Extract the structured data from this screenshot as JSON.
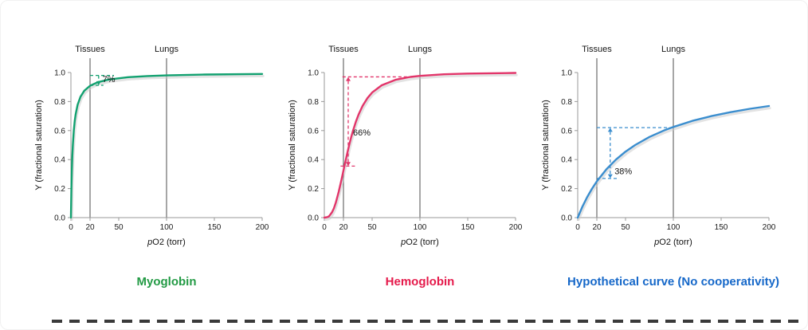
{
  "page": {
    "background": "#ffffff"
  },
  "chart_data": [
    {
      "type": "line",
      "title": "Myoglobin",
      "title_color": "#229a44",
      "color": "#12a170",
      "xlabel": "pO2 (torr)",
      "ylabel": "Y (fractional saturation)",
      "xlim": [
        0,
        200
      ],
      "ylim": [
        0,
        1
      ],
      "xticks": [
        0,
        20,
        50,
        100,
        150,
        200
      ],
      "yticks": [
        0,
        0.2,
        0.4,
        0.6,
        0.8,
        1
      ],
      "grid": false,
      "legend": "none",
      "reference_lines": [
        {
          "label": "Tissues",
          "x": 20
        },
        {
          "label": "Lungs",
          "x": 100
        }
      ],
      "annotation": {
        "label": "7%",
        "arrow_x": 29,
        "y_top": 0.98,
        "y_bottom": 0.912,
        "top_span": [
          20,
          45
        ],
        "bottom_span": [
          20,
          34
        ],
        "label_x": 33,
        "label_y": 0.935,
        "arrows": "down"
      },
      "points": [
        [
          0,
          0
        ],
        [
          0.5,
          0.2
        ],
        [
          1,
          0.333
        ],
        [
          1.5,
          0.429
        ],
        [
          2,
          0.5
        ],
        [
          3,
          0.6
        ],
        [
          4,
          0.667
        ],
        [
          5,
          0.714
        ],
        [
          7,
          0.778
        ],
        [
          10,
          0.833
        ],
        [
          14,
          0.875
        ],
        [
          20,
          0.909
        ],
        [
          28,
          0.933
        ],
        [
          40,
          0.952
        ],
        [
          60,
          0.968
        ],
        [
          80,
          0.976
        ],
        [
          100,
          0.98
        ],
        [
          140,
          0.986
        ],
        [
          200,
          0.99
        ]
      ]
    },
    {
      "type": "line",
      "title": "Hemoglobin",
      "title_color": "#e51a4b",
      "color": "#e2356a",
      "xlabel": "pO2 (torr)",
      "ylabel": "Y (fractional saturation)",
      "xlim": [
        0,
        200
      ],
      "ylim": [
        0,
        1
      ],
      "xticks": [
        0,
        20,
        50,
        100,
        150,
        200
      ],
      "yticks": [
        0,
        0.2,
        0.4,
        0.6,
        0.8,
        1
      ],
      "grid": false,
      "legend": "none",
      "reference_lines": [
        {
          "label": "Tissues",
          "x": 20
        },
        {
          "label": "Lungs",
          "x": 100
        }
      ],
      "annotation": {
        "label": "66%",
        "arrow_x": 25,
        "y_top": 0.97,
        "y_bottom": 0.355,
        "top_span": [
          19,
          90
        ],
        "bottom_span": [
          17,
          33
        ],
        "label_x": 30,
        "label_y": 0.565,
        "arrows": "both"
      },
      "points": [
        [
          0,
          0
        ],
        [
          3,
          0.003
        ],
        [
          5,
          0.01
        ],
        [
          8,
          0.036
        ],
        [
          10,
          0.064
        ],
        [
          12,
          0.103
        ],
        [
          15,
          0.177
        ],
        [
          18,
          0.263
        ],
        [
          20,
          0.324
        ],
        [
          22,
          0.385
        ],
        [
          24,
          0.444
        ],
        [
          26,
          0.5
        ],
        [
          28,
          0.552
        ],
        [
          30,
          0.599
        ],
        [
          33,
          0.661
        ],
        [
          36,
          0.713
        ],
        [
          40,
          0.77
        ],
        [
          45,
          0.823
        ],
        [
          50,
          0.862
        ],
        [
          60,
          0.912
        ],
        [
          75,
          0.951
        ],
        [
          90,
          0.97
        ],
        [
          100,
          0.977
        ],
        [
          125,
          0.988
        ],
        [
          150,
          0.993
        ],
        [
          200,
          0.997
        ]
      ]
    },
    {
      "type": "line",
      "title": "Hypothetical curve (No cooperativity)",
      "title_color": "#1668c9",
      "color": "#3a8dce",
      "xlabel": "pO2 (torr)",
      "ylabel": "Y (fractional saturation)",
      "xlim": [
        0,
        200
      ],
      "ylim": [
        0,
        1
      ],
      "xticks": [
        0,
        20,
        50,
        100,
        150,
        200
      ],
      "yticks": [
        0,
        0.2,
        0.4,
        0.6,
        0.8,
        1
      ],
      "grid": false,
      "legend": "none",
      "reference_lines": [
        {
          "label": "Tissues",
          "x": 20
        },
        {
          "label": "Lungs",
          "x": 100
        }
      ],
      "annotation": {
        "label": "38%",
        "arrow_x": 34,
        "y_top": 0.62,
        "y_bottom": 0.27,
        "top_span": [
          20,
          100
        ],
        "bottom_span": [
          20,
          42
        ],
        "label_x": 38.5,
        "label_y": 0.3,
        "arrows": "both"
      },
      "points": [
        [
          0,
          0
        ],
        [
          5,
          0.077
        ],
        [
          10,
          0.143
        ],
        [
          15,
          0.2
        ],
        [
          20,
          0.25
        ],
        [
          30,
          0.333
        ],
        [
          40,
          0.4
        ],
        [
          50,
          0.455
        ],
        [
          60,
          0.5
        ],
        [
          75,
          0.556
        ],
        [
          90,
          0.6
        ],
        [
          100,
          0.625
        ],
        [
          120,
          0.667
        ],
        [
          140,
          0.7
        ],
        [
          160,
          0.727
        ],
        [
          180,
          0.75
        ],
        [
          200,
          0.769
        ]
      ]
    }
  ]
}
